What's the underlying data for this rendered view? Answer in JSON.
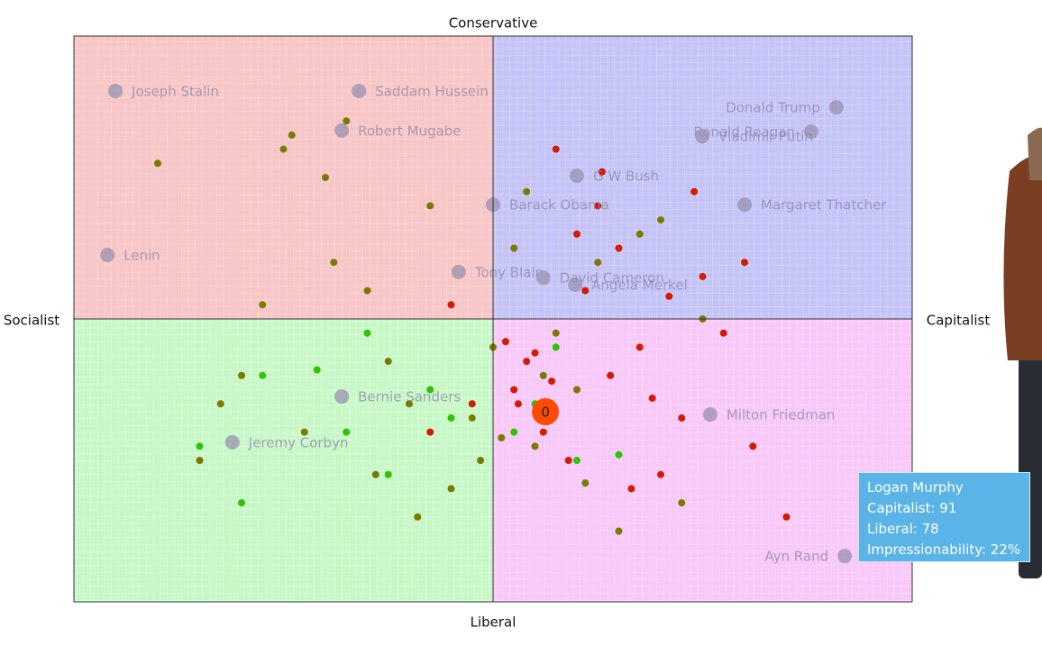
{
  "chart_data": {
    "type": "scatter",
    "top_label": "Conservative",
    "bottom_label": "Liberal",
    "left_label": "Socialist",
    "right_label": "Capitalist",
    "xlim": [
      -100,
      100
    ],
    "ylim": [
      -100,
      100
    ],
    "quadrant_colors": [
      "#f8c6c6",
      "#c4c4f8",
      "#c8f8c8",
      "#f8c8f8"
    ],
    "series": [
      {
        "color": "#d41a00",
        "x": [
          20,
          35,
          5,
          48,
          12,
          60,
          28,
          -5,
          15,
          40,
          55,
          8,
          22,
          30,
          45,
          18,
          -10,
          3,
          62,
          25,
          38,
          10,
          50,
          33,
          14,
          26,
          70,
          -15,
          42,
          6
        ],
        "y": [
          30,
          -10,
          -25,
          45,
          -40,
          20,
          -20,
          -30,
          60,
          -55,
          -5,
          -15,
          10,
          25,
          -35,
          -50,
          5,
          -8,
          -45,
          40,
          -28,
          -12,
          15,
          -60,
          -22,
          52,
          -70,
          -40,
          8,
          -30
        ]
      },
      {
        "color": "#7a7a00",
        "x": [
          -40,
          -20,
          -60,
          -30,
          10,
          0,
          -50,
          25,
          -10,
          35,
          -70,
          -35,
          15,
          -5,
          -45,
          5,
          20,
          -25,
          -15,
          45,
          -55,
          30,
          -80,
          -65,
          12,
          -3,
          50,
          -28,
          -38,
          8,
          -18,
          40,
          -48,
          2,
          22
        ],
        "y": [
          50,
          -30,
          -20,
          10,
          -45,
          -10,
          60,
          20,
          -60,
          30,
          -50,
          70,
          -5,
          -35,
          -40,
          25,
          -25,
          -15,
          40,
          -65,
          5,
          -75,
          55,
          -30,
          -20,
          -50,
          0,
          -55,
          20,
          45,
          -70,
          35,
          65,
          -42,
          -58
        ]
      },
      {
        "color": "#2fc400",
        "x": [
          -70,
          -55,
          -30,
          -10,
          5,
          20,
          -42,
          -25,
          30,
          -60,
          -15,
          10,
          -35,
          15
        ],
        "y": [
          -45,
          -20,
          -5,
          -35,
          -40,
          -50,
          -18,
          -55,
          -48,
          -65,
          -25,
          -30,
          -40,
          -10
        ]
      }
    ],
    "figures": [
      {
        "name": "Joseph Stalin",
        "x": -90.1,
        "y": 80.6
      },
      {
        "name": "Saddam Hussein",
        "x": -32,
        "y": 80.6
      },
      {
        "name": "Robert Mugabe",
        "x": -36.1,
        "y": 66.6
      },
      {
        "name": "Lenin",
        "x": -92,
        "y": 22.6
      },
      {
        "name": "Donald Trump",
        "x": 81.9,
        "y": 74.8
      },
      {
        "name": "Ronald Reagan",
        "x": 75.9,
        "y": 66.2
      },
      {
        "name": "Vladimir Putin",
        "x": 49.9,
        "y": 64.6
      },
      {
        "name": "G W Bush",
        "x": 20,
        "y": 50.6
      },
      {
        "name": "Barack Obama",
        "x": 0,
        "y": 40.4
      },
      {
        "name": "Margaret Thatcher",
        "x": 60,
        "y": 40.4
      },
      {
        "name": "Tony Blair",
        "x": -8.2,
        "y": 16.6
      },
      {
        "name": "David Cameron",
        "x": 12,
        "y": 14.6
      },
      {
        "name": "Angela Merkel",
        "x": 19.6,
        "y": 12.1
      },
      {
        "name": "Bernie Sanders",
        "x": -36.1,
        "y": -27.4
      },
      {
        "name": "Jeremy Corbyn",
        "x": -62.2,
        "y": -43.6
      },
      {
        "name": "Milton Friedman",
        "x": 51.8,
        "y": -33.8
      },
      {
        "name": "Ayn Rand",
        "x": 83.9,
        "y": -83.8
      }
    ],
    "player": {
      "label": "0",
      "x": 12.5,
      "y": -32.8,
      "color": "#ff4a00"
    },
    "tooltip": {
      "name": "Logan Murphy",
      "lines": [
        "Capitalist: 91",
        "Liberal: 78",
        "Impressionability: 22%"
      ]
    }
  }
}
